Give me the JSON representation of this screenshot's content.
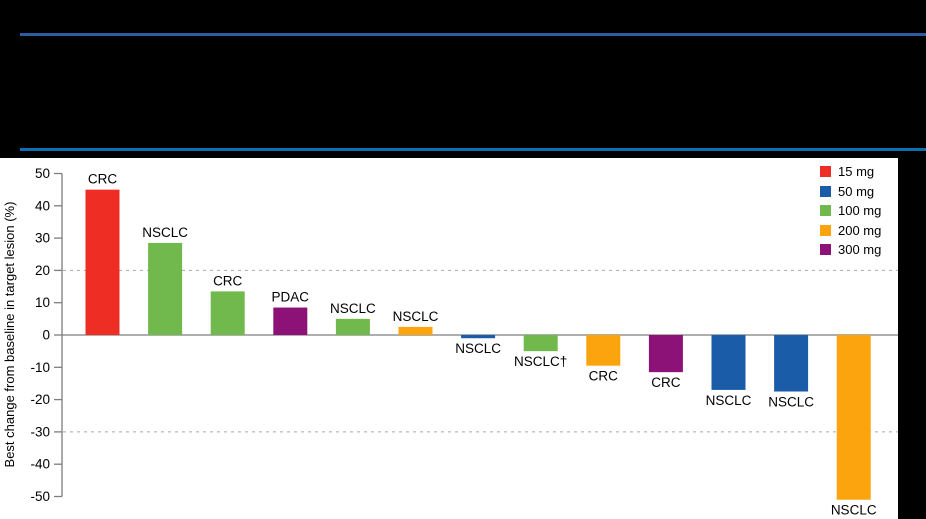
{
  "slide": {
    "background": "#000000",
    "top_rule_color": "#2D5BA4",
    "bottom_rule_color": "#0C70B5"
  },
  "chart_data": {
    "type": "bar",
    "subtype": "waterfall",
    "title": "",
    "ylabel": "Best change from baseline in target lesion (%)",
    "xlabel": "",
    "ylim": [
      -50,
      50
    ],
    "yticks": [
      50,
      40,
      30,
      20,
      10,
      0,
      -10,
      -20,
      -30,
      -40,
      -50
    ],
    "reference_lines_dashed": [
      20,
      -30
    ],
    "grid": "off",
    "axis_color": "#7d7d7d",
    "refline_color": "#a9a9a9",
    "label_color": "#000000",
    "dose_colors": {
      "15 mg": "#EE2E24",
      "50 mg": "#1A5CA8",
      "100 mg": "#71B84D",
      "200 mg": "#FCA40D",
      "300 mg": "#8C1277"
    },
    "bars": [
      {
        "label": "CRC",
        "value": 45,
        "dose": "15 mg"
      },
      {
        "label": "NSCLC",
        "value": 28.5,
        "dose": "100 mg"
      },
      {
        "label": "CRC",
        "value": 13.5,
        "dose": "100 mg"
      },
      {
        "label": "PDAC",
        "value": 8.5,
        "dose": "300 mg"
      },
      {
        "label": "NSCLC",
        "value": 5,
        "dose": "100 mg"
      },
      {
        "label": "NSCLC",
        "value": 2.5,
        "dose": "200 mg"
      },
      {
        "label": "NSCLC",
        "value": -1,
        "dose": "50 mg"
      },
      {
        "label": "NSCLC†",
        "value": -5,
        "dose": "100 mg"
      },
      {
        "label": "CRC",
        "value": -9.5,
        "dose": "200 mg"
      },
      {
        "label": "CRC",
        "value": -11.5,
        "dose": "300 mg"
      },
      {
        "label": "NSCLC",
        "value": -17,
        "dose": "50 mg"
      },
      {
        "label": "NSCLC",
        "value": -17.5,
        "dose": "50 mg"
      },
      {
        "label": "NSCLC",
        "value": -51,
        "dose": "200 mg"
      }
    ],
    "legend": {
      "position": "top-right",
      "items": [
        {
          "label": "15 mg",
          "color": "#EE2E24"
        },
        {
          "label": "50 mg",
          "color": "#1A5CA8"
        },
        {
          "label": "100 mg",
          "color": "#71B84D"
        },
        {
          "label": "200 mg",
          "color": "#FCA40D"
        },
        {
          "label": "300 mg",
          "color": "#8C1277"
        }
      ]
    }
  }
}
